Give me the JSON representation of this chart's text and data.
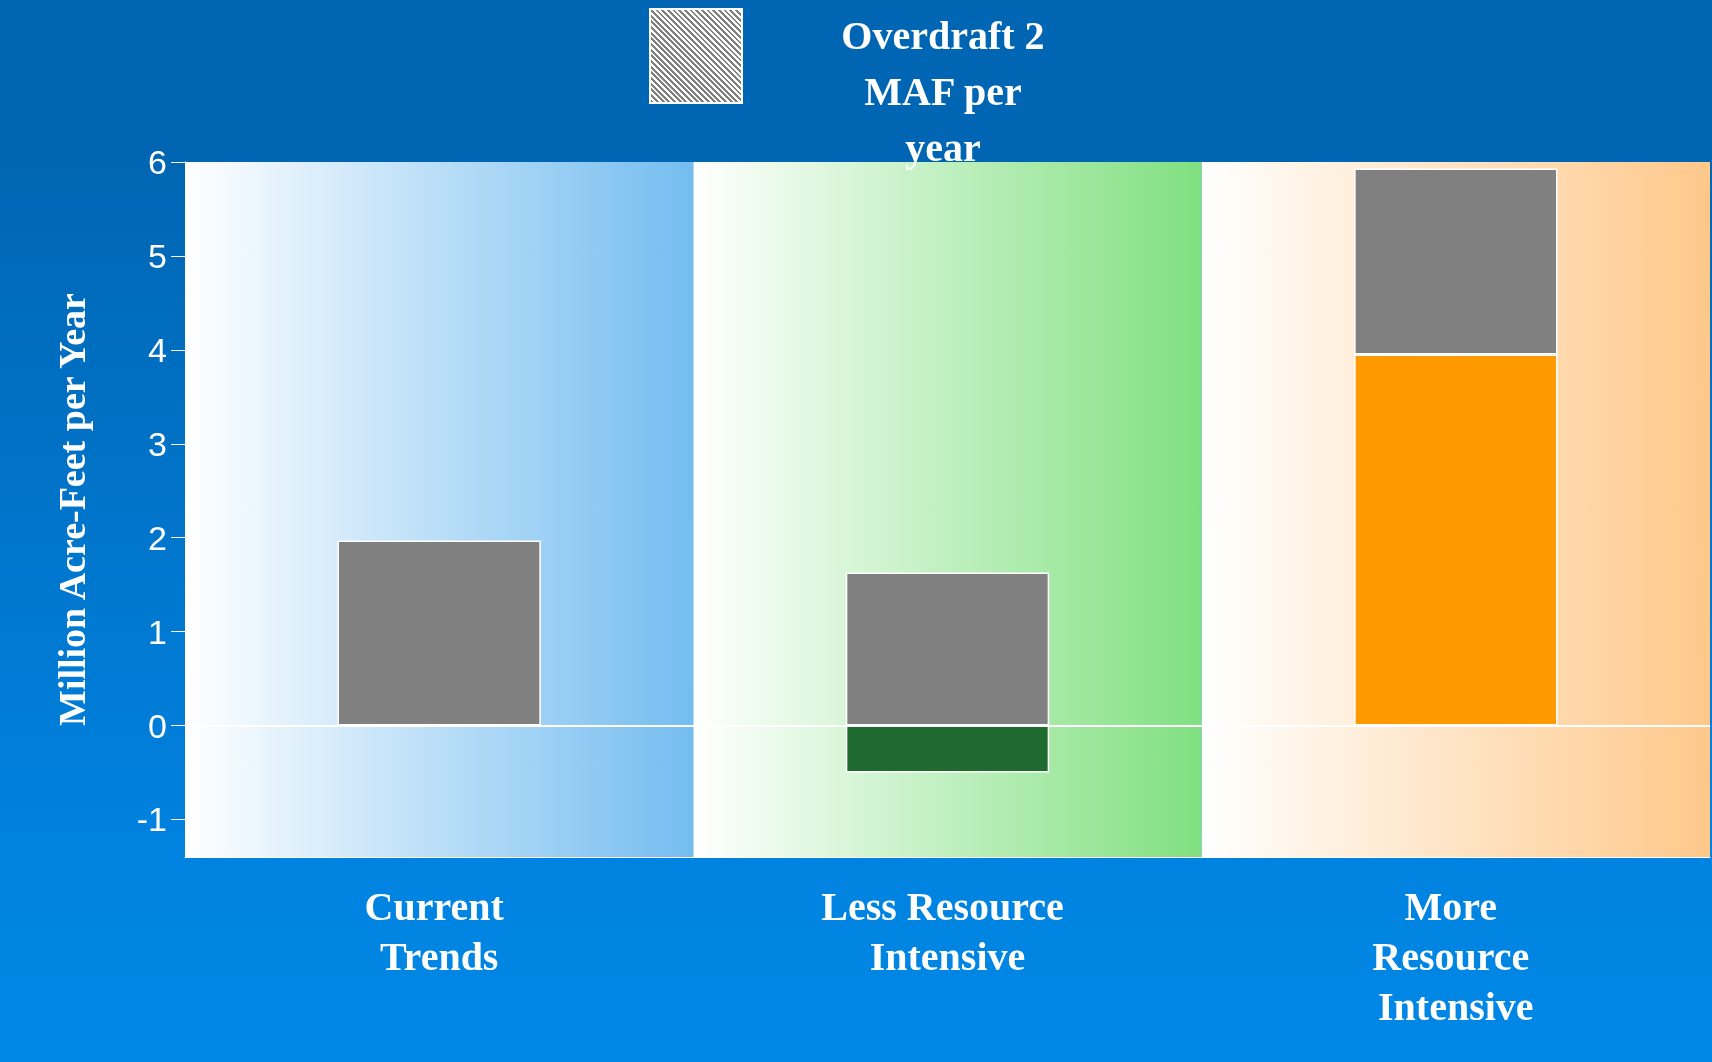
{
  "chart_data": {
    "type": "bar",
    "stacked": true,
    "categories": [
      "Current Trends",
      "Less Resource Intensive",
      "More Resource Intensive"
    ],
    "ylabel": "Million Acre-Feet per Year",
    "series": [
      {
        "colors": [
          "#1f6b2f",
          "#1f6b2f",
          "#ff9900"
        ],
        "values": [
          null,
          -0.5,
          3.95
        ]
      },
      {
        "name": "Overdraft 2 MAF per year",
        "color": "#808080",
        "values": [
          1.97,
          1.63,
          1.98
        ]
      }
    ],
    "bands": [
      {
        "axis": "x",
        "from": "Current Trends",
        "to": "Current Trends",
        "color": "#74bdf0"
      },
      {
        "axis": "x",
        "from": "Less Resource Intensive",
        "to": "Less Resource Intensive",
        "color": "#80e080"
      },
      {
        "axis": "x",
        "from": "More Resource Intensive",
        "to": "More Resource Intensive",
        "color": "#ffc88a"
      }
    ],
    "ylim": [
      -1.4,
      6
    ],
    "yticks": [
      -1,
      0,
      1,
      2,
      3,
      4,
      5,
      6
    ],
    "ref_lines": [
      {
        "axis": "y",
        "value": 0,
        "color": "#ffffff"
      }
    ],
    "legend": "top"
  }
}
